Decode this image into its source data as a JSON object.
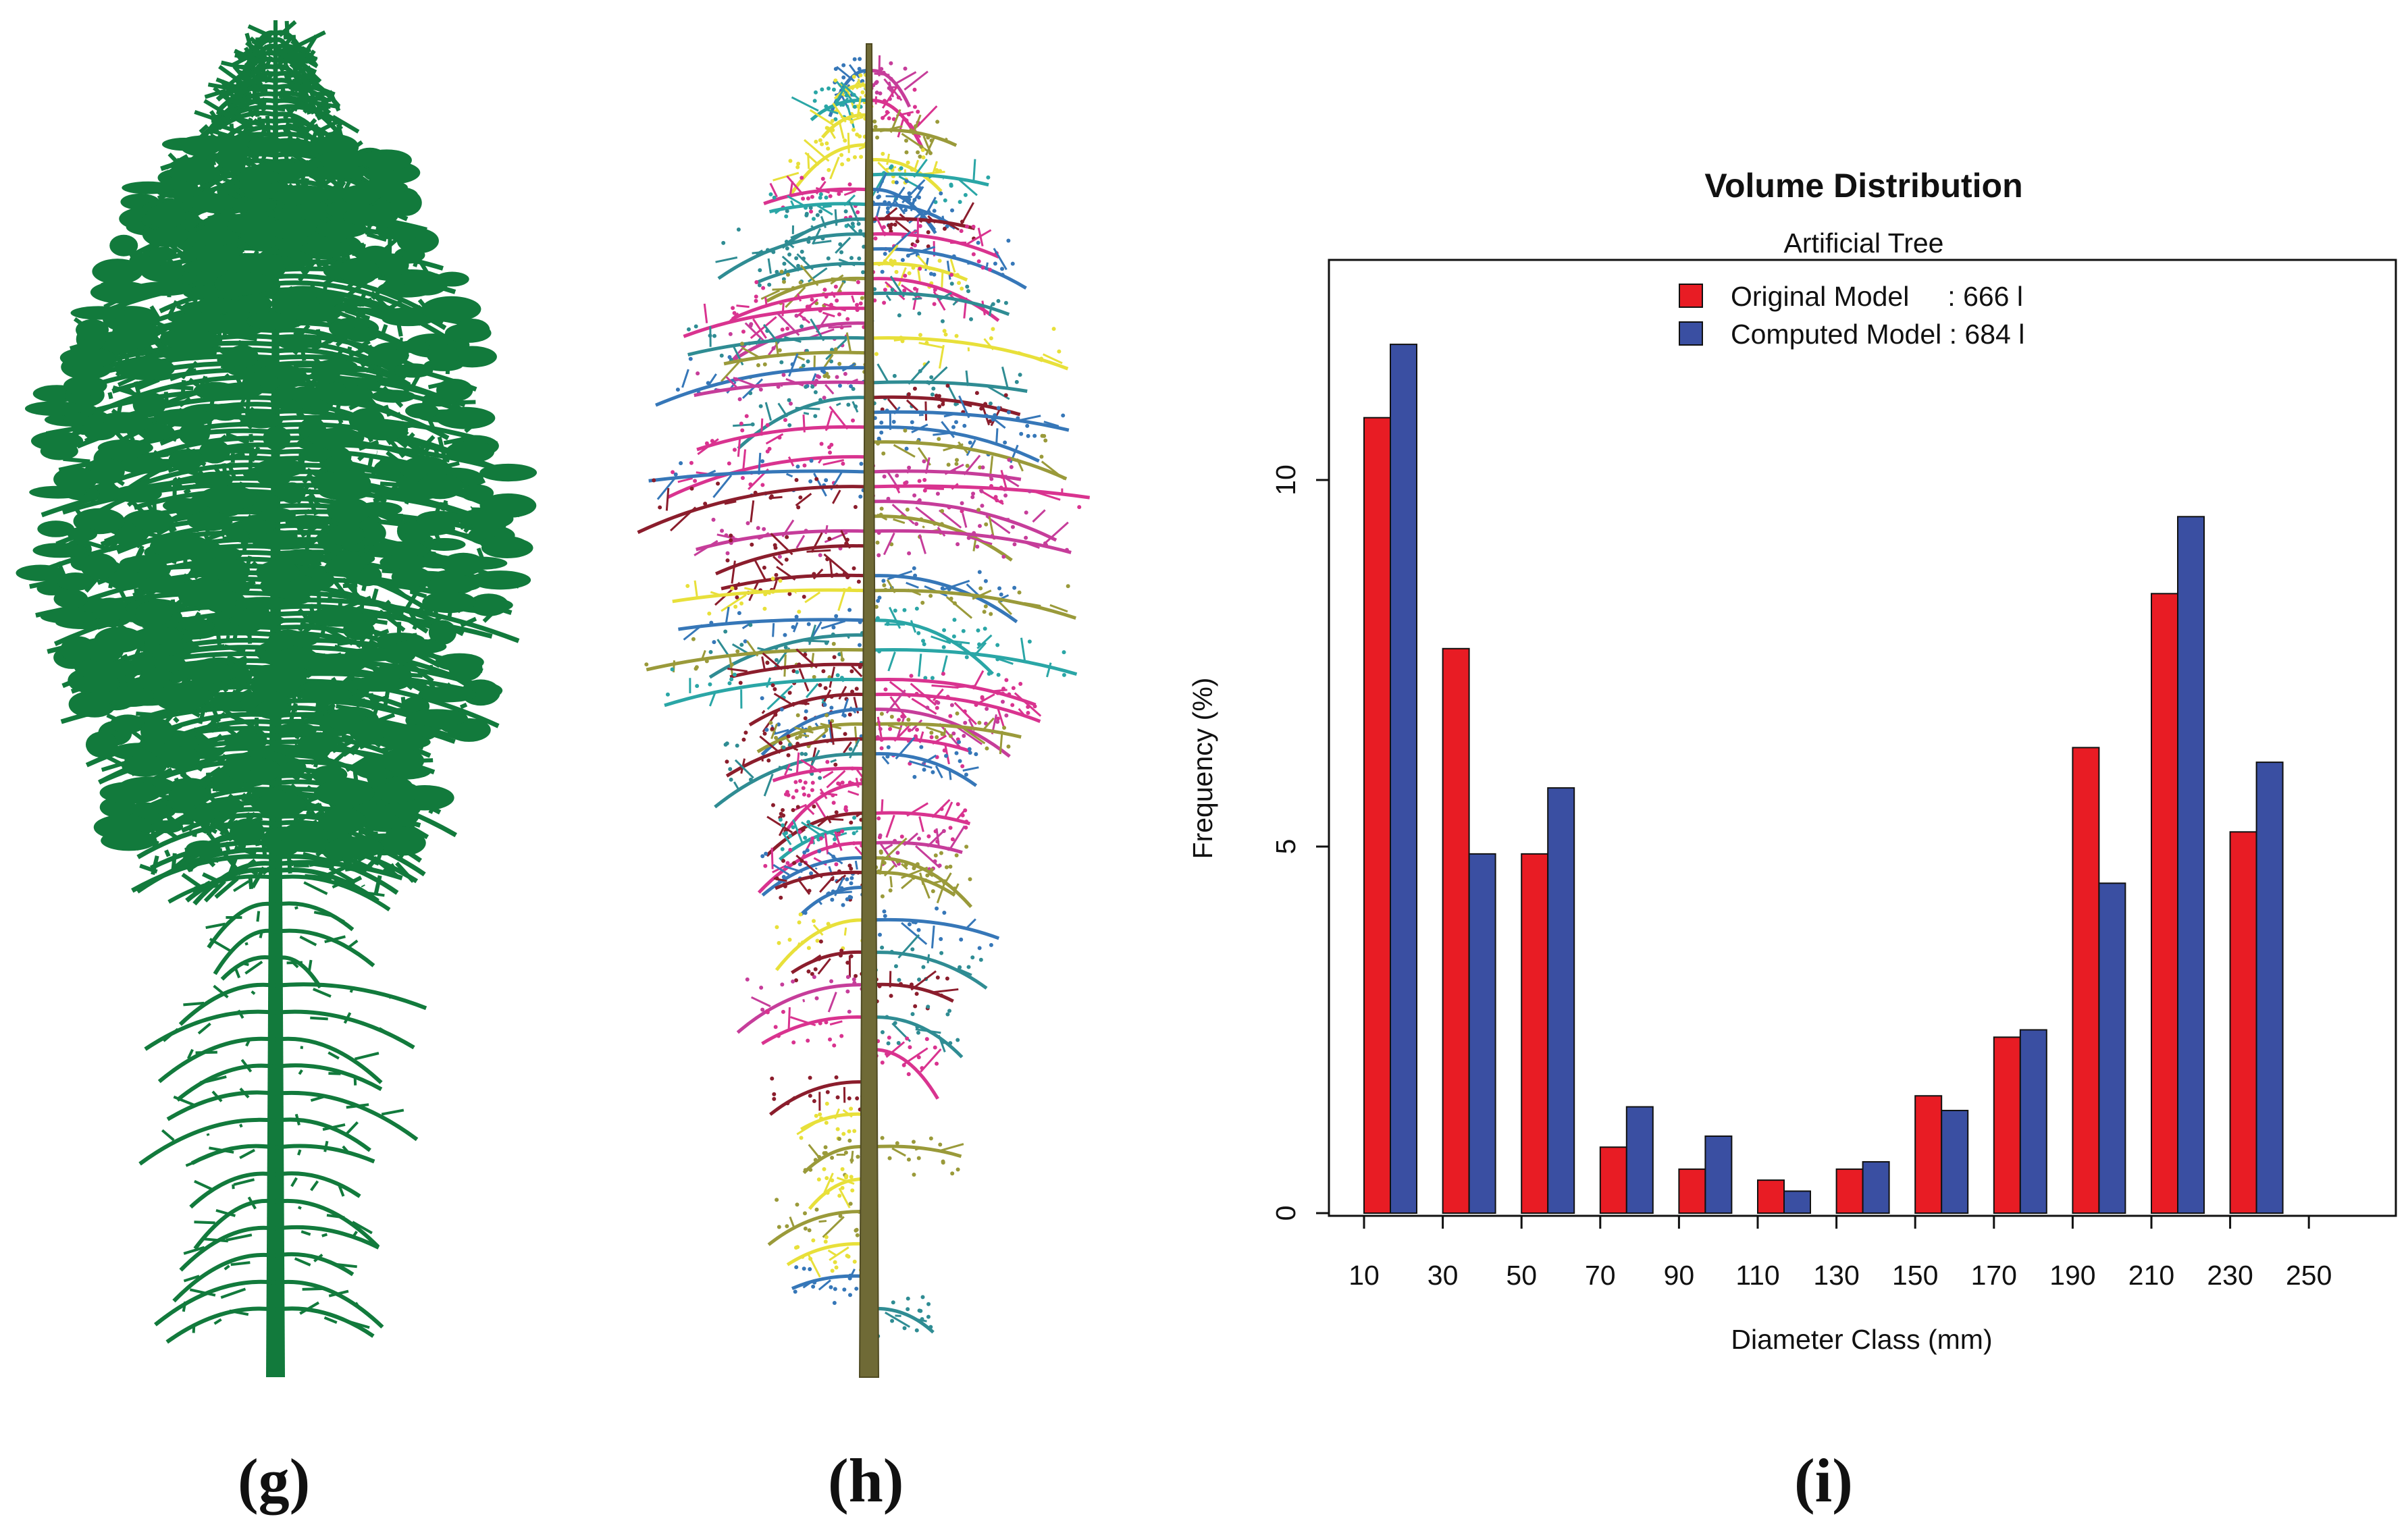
{
  "panels": {
    "g": "(g)",
    "h": "(h)",
    "i": "(i)"
  },
  "colors": {
    "tree_g": "#127a3c",
    "stem_h": "#6f6a36",
    "original": "#e81c24",
    "computed": "#3a4fa2"
  },
  "chart_data": {
    "type": "bar",
    "title": "Volume Distribution",
    "subtitle": "Artificial Tree",
    "xlabel": "Diameter Class (mm)",
    "ylabel": "Frequency (%)",
    "categories": [
      "10",
      "30",
      "50",
      "70",
      "90",
      "110",
      "130",
      "150",
      "170",
      "190",
      "210",
      "230",
      "250"
    ],
    "series": [
      {
        "name": "Original Model",
        "legend_label": "Original Model     : 666 l",
        "values": [
          10.85,
          7.7,
          4.9,
          0.9,
          0.6,
          0.45,
          0.6,
          1.6,
          2.4,
          6.35,
          8.45,
          5.2,
          0
        ]
      },
      {
        "name": "Computed Model",
        "legend_label": "Computed Model : 684 l",
        "values": [
          11.85,
          4.9,
          5.8,
          1.45,
          1.05,
          0.3,
          0.7,
          1.4,
          2.5,
          4.5,
          9.5,
          6.15,
          0
        ]
      }
    ],
    "yticks": [
      "0",
      "5",
      "10"
    ],
    "ylim": [
      0,
      13
    ],
    "legend_position": "top-center",
    "grid": false
  }
}
